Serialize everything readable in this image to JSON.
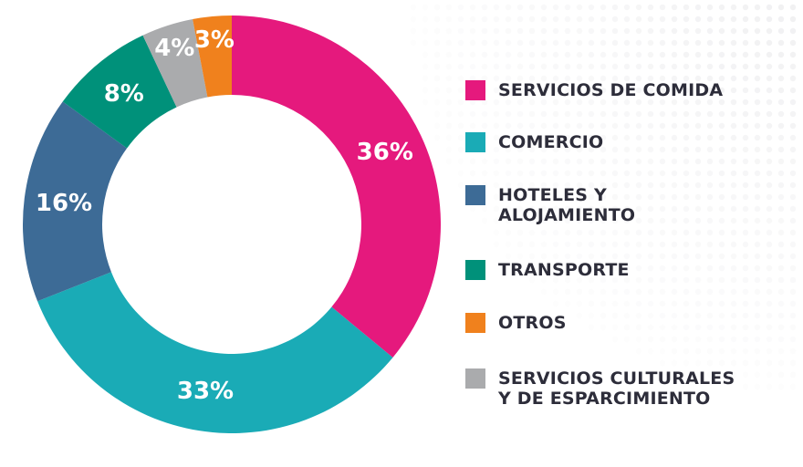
{
  "chart_data": {
    "type": "pie",
    "variant": "donut",
    "title": "",
    "slices": [
      {
        "key": "servicios_comida",
        "label": "SERVICIOS DE COMIDA",
        "value": 36,
        "display": "36%",
        "color": "#e5197d"
      },
      {
        "key": "comercio",
        "label": "COMERCIO",
        "value": 33,
        "display": "33%",
        "color": "#1aabb6"
      },
      {
        "key": "hoteles",
        "label": "HOTELES Y\nALOJAMIENTO",
        "value": 16,
        "display": "16%",
        "color": "#3d6b96"
      },
      {
        "key": "transporte",
        "label": "TRANSPORTE",
        "value": 8,
        "display": "8%",
        "color": "#00917a"
      },
      {
        "key": "culturales",
        "label": "SERVICIOS CULTURALES\nY DE ESPARCIMIENTO",
        "value": 4,
        "display": "4%",
        "color": "#aaabad"
      },
      {
        "key": "otros",
        "label": "OTROS",
        "value": 3,
        "display": "3%",
        "color": "#f0811d"
      }
    ],
    "legend_order": [
      "servicios_comida",
      "comercio",
      "hoteles",
      "transporte",
      "otros",
      "culturales"
    ],
    "legend_position": "right"
  }
}
